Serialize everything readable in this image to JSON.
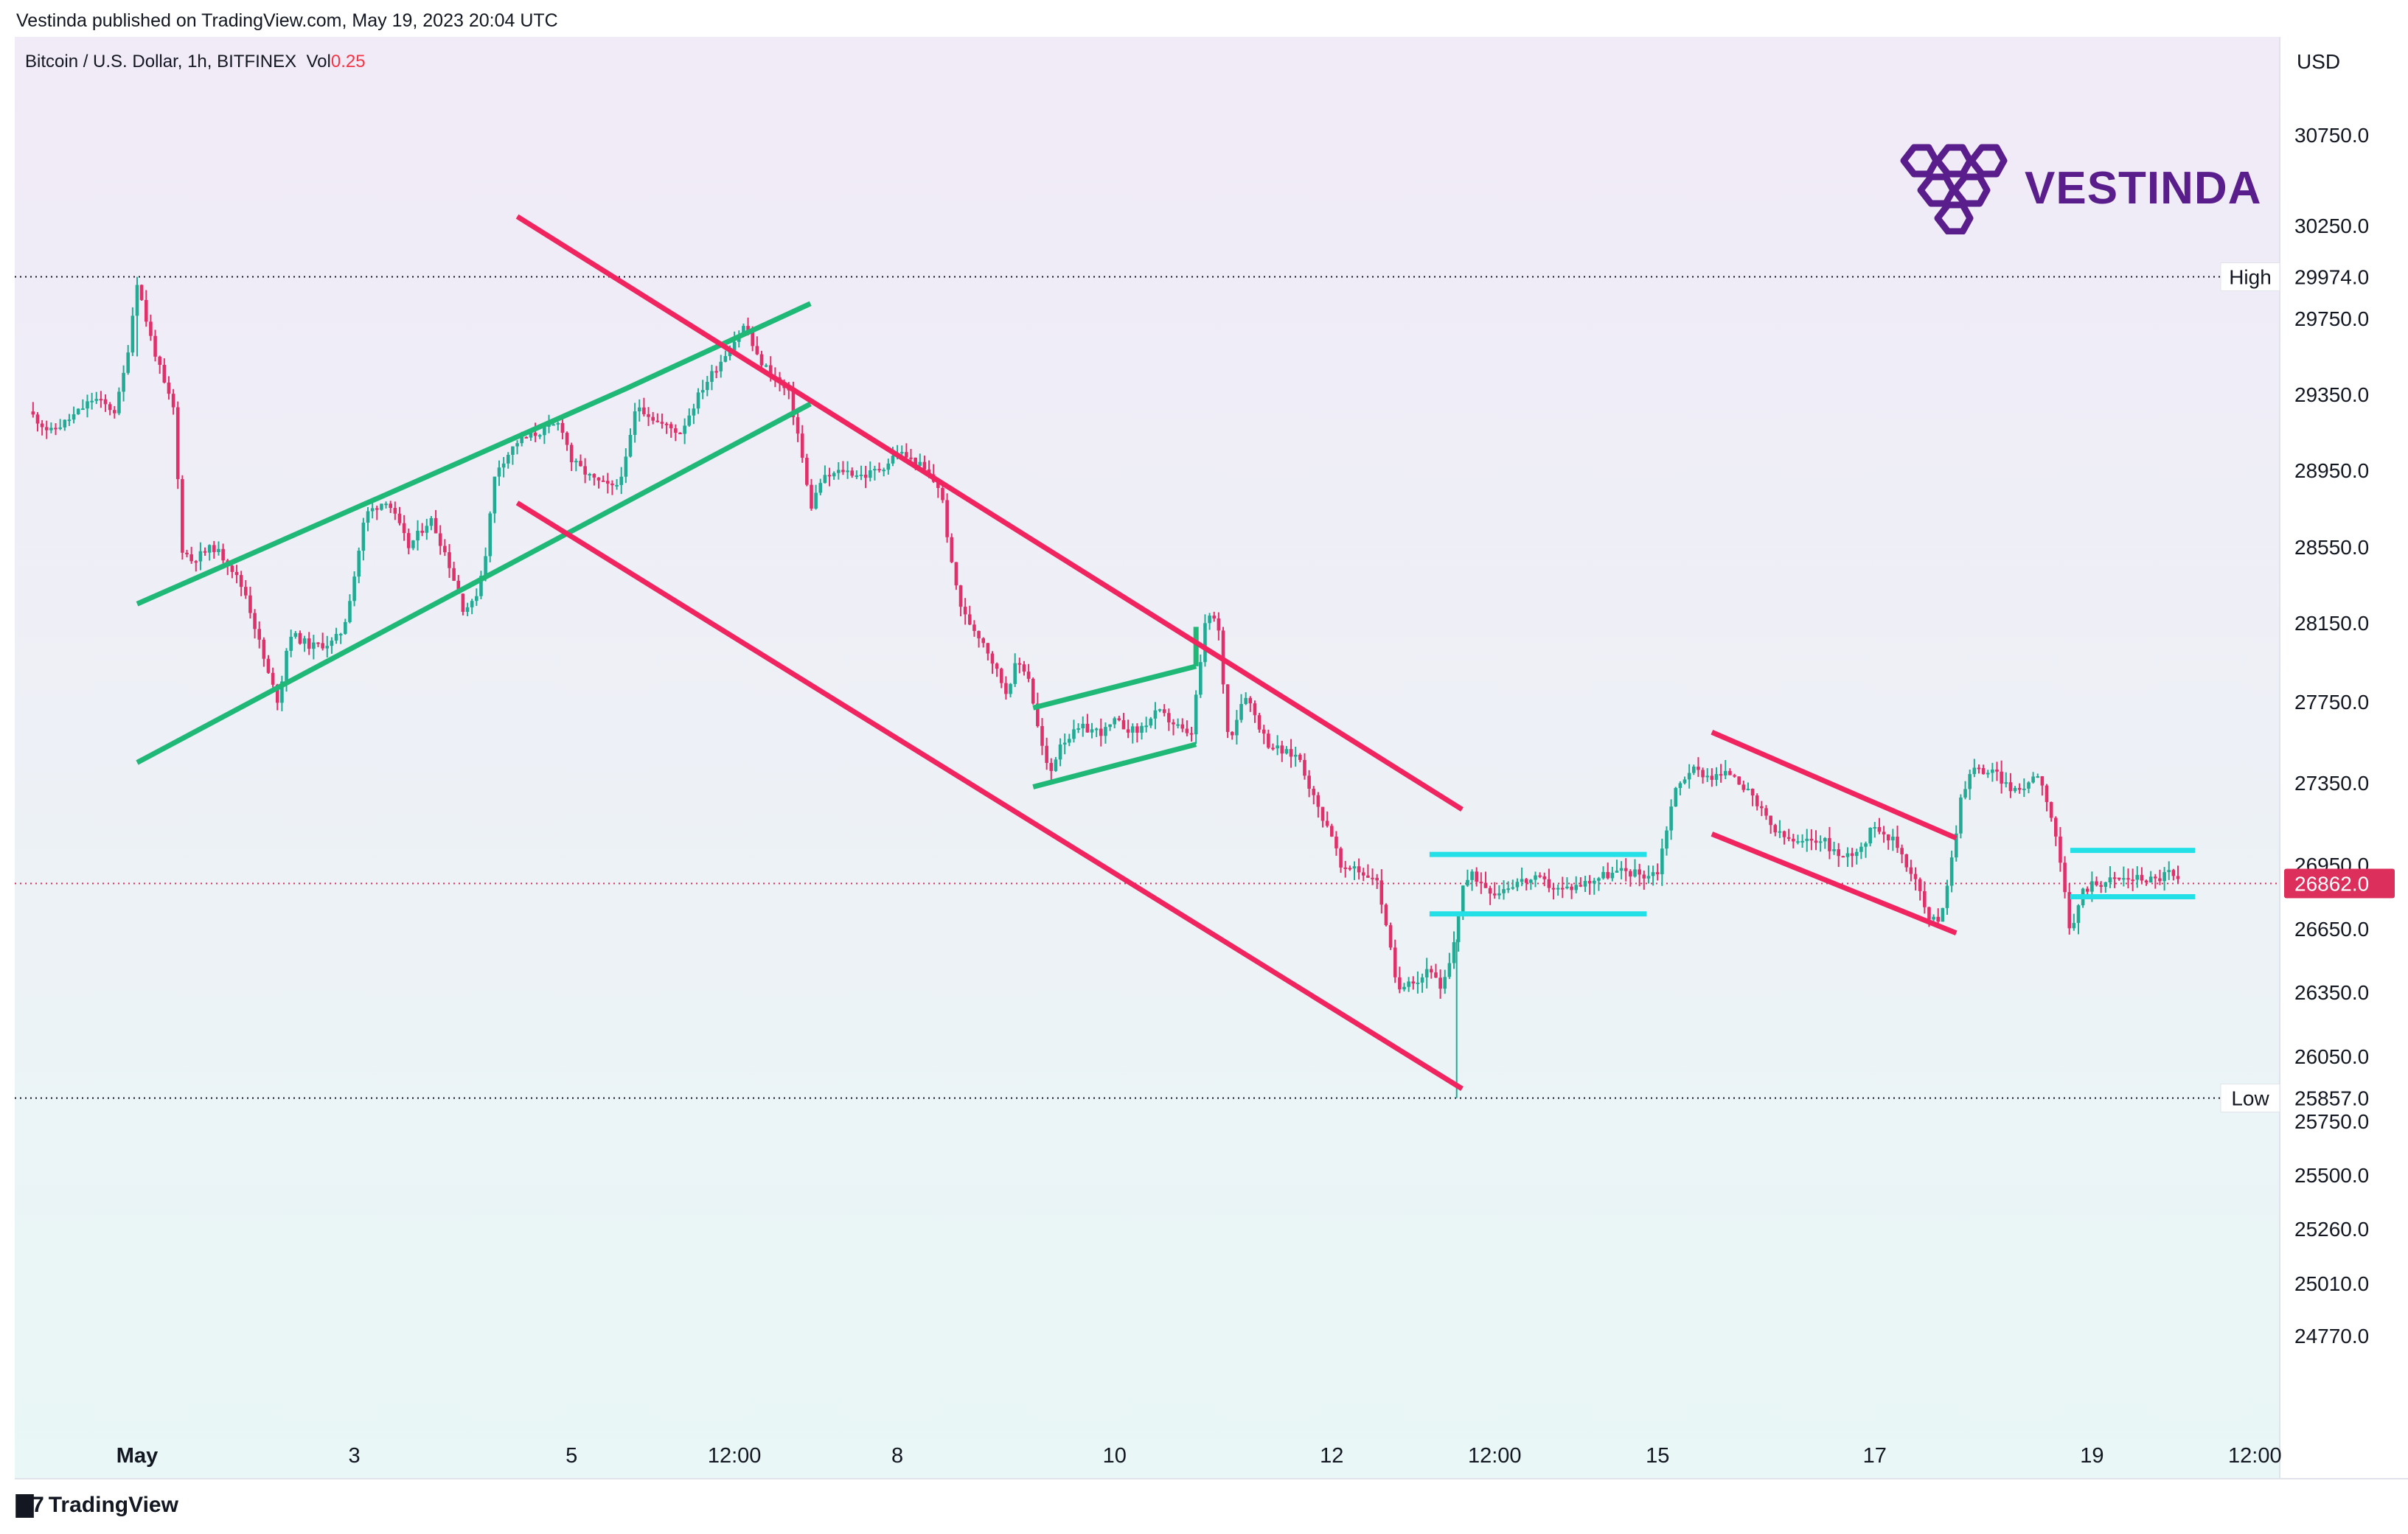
{
  "header": {
    "published_by": "Vestinda published on TradingView.com, May 19, 2023 20:04 UTC",
    "symbol": "Bitcoin / U.S. Dollar, 1h, BITFINEX",
    "vol_label": "Vol",
    "vol_value": "0.25"
  },
  "brand": {
    "name": "VESTINDA",
    "logo_icon": "hexagon-cluster-icon"
  },
  "footer": {
    "logo_icon": "tradingview-logo-icon",
    "label": "TradingView"
  },
  "colors": {
    "bull": "#22ab94",
    "bear": "#e0306a",
    "channel_green": "#1fb877",
    "channel_red": "#f0245f",
    "range_cyan": "#22e0e6",
    "price_tag": "#dc2f5c",
    "brand_purple": "#5a1e8c"
  },
  "chart_data": {
    "type": "candlestick",
    "currency_label": "USD",
    "y_ticks": [
      30750.0,
      30250.0,
      29750.0,
      29350.0,
      28950.0,
      28550.0,
      28150.0,
      27750.0,
      27350.0,
      26950.0,
      26650.0,
      26350.0,
      26050.0,
      25750.0,
      25500.0,
      25260.0,
      25010.0,
      24770.0
    ],
    "y_tick_labels": [
      "30750.0",
      "30250.0",
      "29750.0",
      "29350.0",
      "28950.0",
      "28550.0",
      "28150.0",
      "27750.0",
      "27350.0",
      "26950.0",
      "26650.0",
      "26350.0",
      "26050.0",
      "25750.0",
      "25500.0",
      "25260.0",
      "25010.0",
      "24770.0"
    ],
    "x_tick_labels": [
      "May",
      "3",
      "5",
      "12:00",
      "8",
      "10",
      "12",
      "12:00",
      "15",
      "17",
      "19",
      "12:00"
    ],
    "x_tick_pos": [
      0.0,
      2.0,
      4.0,
      5.5,
      7.0,
      9.0,
      11.0,
      12.5,
      14.0,
      16.0,
      18.0,
      19.5
    ],
    "x_unit": "days since May 1 00:00",
    "high": {
      "label": "High",
      "value": 29974.0,
      "value_label": "29974.0"
    },
    "low": {
      "label": "Low",
      "value": 25857.0,
      "value_label": "25857.0"
    },
    "last": {
      "value": 26862.0,
      "value_label": "26862.0"
    },
    "price_path": [
      [
        -1.0,
        29260
      ],
      [
        -0.8,
        29150
      ],
      [
        -0.6,
        29230
      ],
      [
        -0.4,
        29330
      ],
      [
        -0.2,
        29260
      ],
      [
        -0.1,
        29520
      ],
      [
        0.0,
        29950
      ],
      [
        0.1,
        29700
      ],
      [
        0.25,
        29400
      ],
      [
        0.35,
        29250
      ],
      [
        0.4,
        28550
      ],
      [
        0.5,
        28480
      ],
      [
        0.7,
        28550
      ],
      [
        0.85,
        28460
      ],
      [
        1.0,
        28300
      ],
      [
        1.2,
        27900
      ],
      [
        1.3,
        27750
      ],
      [
        1.4,
        28100
      ],
      [
        1.6,
        28030
      ],
      [
        1.8,
        28050
      ],
      [
        1.9,
        28120
      ],
      [
        2.0,
        28400
      ],
      [
        2.1,
        28720
      ],
      [
        2.3,
        28800
      ],
      [
        2.5,
        28550
      ],
      [
        2.7,
        28700
      ],
      [
        2.85,
        28500
      ],
      [
        3.0,
        28230
      ],
      [
        3.1,
        28250
      ],
      [
        3.2,
        28480
      ],
      [
        3.3,
        28950
      ],
      [
        3.5,
        29100
      ],
      [
        3.7,
        29150
      ],
      [
        3.9,
        29200
      ],
      [
        4.0,
        29000
      ],
      [
        4.2,
        28900
      ],
      [
        4.4,
        28850
      ],
      [
        4.5,
        29000
      ],
      [
        4.6,
        29300
      ],
      [
        4.8,
        29200
      ],
      [
        5.0,
        29150
      ],
      [
        5.2,
        29380
      ],
      [
        5.4,
        29550
      ],
      [
        5.6,
        29720
      ],
      [
        5.7,
        29550
      ],
      [
        5.9,
        29420
      ],
      [
        6.0,
        29350
      ],
      [
        6.1,
        29100
      ],
      [
        6.2,
        28750
      ],
      [
        6.3,
        28900
      ],
      [
        6.5,
        28950
      ],
      [
        6.7,
        28920
      ],
      [
        6.9,
        28980
      ],
      [
        7.0,
        29050
      ],
      [
        7.2,
        28980
      ],
      [
        7.4,
        28850
      ],
      [
        7.5,
        28450
      ],
      [
        7.6,
        28200
      ],
      [
        7.8,
        28050
      ],
      [
        8.0,
        27800
      ],
      [
        8.1,
        27950
      ],
      [
        8.2,
        27900
      ],
      [
        8.3,
        27600
      ],
      [
        8.4,
        27380
      ],
      [
        8.5,
        27550
      ],
      [
        8.7,
        27620
      ],
      [
        8.9,
        27600
      ],
      [
        9.0,
        27650
      ],
      [
        9.2,
        27600
      ],
      [
        9.4,
        27700
      ],
      [
        9.6,
        27620
      ],
      [
        9.7,
        27560
      ],
      [
        9.85,
        28200
      ],
      [
        9.95,
        28150
      ],
      [
        10.05,
        27550
      ],
      [
        10.2,
        27800
      ],
      [
        10.4,
        27550
      ],
      [
        10.55,
        27500
      ],
      [
        10.7,
        27480
      ],
      [
        10.85,
        27250
      ],
      [
        11.0,
        27100
      ],
      [
        11.1,
        26900
      ],
      [
        11.2,
        26950
      ],
      [
        11.3,
        26900
      ],
      [
        11.4,
        26900
      ],
      [
        11.5,
        26680
      ],
      [
        11.6,
        26350
      ],
      [
        11.7,
        26420
      ],
      [
        11.8,
        26400
      ],
      [
        11.9,
        26480
      ],
      [
        12.0,
        26350
      ],
      [
        12.1,
        26500
      ],
      [
        12.2,
        26850
      ],
      [
        12.3,
        26900
      ],
      [
        12.5,
        26820
      ],
      [
        12.7,
        26870
      ],
      [
        12.9,
        26880
      ],
      [
        13.1,
        26830
      ],
      [
        13.3,
        26860
      ],
      [
        13.5,
        26900
      ],
      [
        13.7,
        26920
      ],
      [
        13.9,
        26900
      ],
      [
        14.0,
        26920
      ],
      [
        14.15,
        27300
      ],
      [
        14.3,
        27420
      ],
      [
        14.5,
        27380
      ],
      [
        14.7,
        27400
      ],
      [
        14.9,
        27250
      ],
      [
        15.1,
        27100
      ],
      [
        15.3,
        27050
      ],
      [
        15.5,
        27080
      ],
      [
        15.7,
        26980
      ],
      [
        15.9,
        27050
      ],
      [
        16.0,
        27150
      ],
      [
        16.2,
        27050
      ],
      [
        16.4,
        26850
      ],
      [
        16.5,
        26680
      ],
      [
        16.6,
        26700
      ],
      [
        16.7,
        26950
      ],
      [
        16.8,
        27300
      ],
      [
        16.9,
        27420
      ],
      [
        17.1,
        27400
      ],
      [
        17.3,
        27300
      ],
      [
        17.4,
        27350
      ],
      [
        17.5,
        27400
      ],
      [
        17.6,
        27250
      ],
      [
        17.7,
        27000
      ],
      [
        17.8,
        26600
      ],
      [
        17.9,
        26820
      ],
      [
        18.0,
        26860
      ],
      [
        18.2,
        26880
      ],
      [
        18.4,
        26890
      ],
      [
        18.6,
        26880
      ],
      [
        18.7,
        26920
      ],
      [
        18.8,
        26862
      ]
    ],
    "drawings": [
      {
        "name": "ascending-channel-upper",
        "color": "green",
        "points": [
          [
            0.0,
            28250
          ],
          [
            3.0,
            29000
          ],
          [
            4.5,
            29380
          ],
          [
            6.2,
            29830
          ]
        ]
      },
      {
        "name": "ascending-channel-lower",
        "color": "green",
        "points": [
          [
            0.0,
            27450
          ],
          [
            6.2,
            29300
          ]
        ]
      },
      {
        "name": "bear-flag-upper",
        "color": "green",
        "points": [
          [
            8.25,
            27720
          ],
          [
            9.75,
            27930
          ]
        ]
      },
      {
        "name": "bear-flag-lower",
        "color": "green",
        "points": [
          [
            8.25,
            27330
          ],
          [
            9.75,
            27540
          ]
        ]
      },
      {
        "name": "flag-pole",
        "color": "green",
        "points": [
          [
            9.75,
            27930
          ],
          [
            9.75,
            28130
          ]
        ]
      },
      {
        "name": "descending-channel-upper",
        "color": "red",
        "points": [
          [
            3.5,
            30300
          ],
          [
            12.2,
            27220
          ]
        ]
      },
      {
        "name": "descending-channel-lower",
        "color": "red",
        "points": [
          [
            3.5,
            28780
          ],
          [
            12.2,
            25900
          ]
        ]
      },
      {
        "name": "falling-wedge-upper",
        "color": "red",
        "points": [
          [
            14.5,
            27600
          ],
          [
            16.75,
            27080
          ]
        ]
      },
      {
        "name": "falling-wedge-lower",
        "color": "red",
        "points": [
          [
            14.5,
            27100
          ],
          [
            16.75,
            26630
          ]
        ]
      },
      {
        "name": "range-1-top",
        "color": "cyan",
        "points": [
          [
            11.9,
            27000
          ],
          [
            13.9,
            27000
          ]
        ]
      },
      {
        "name": "range-1-bottom",
        "color": "cyan",
        "points": [
          [
            11.9,
            26720
          ],
          [
            13.9,
            26720
          ]
        ]
      },
      {
        "name": "range-2-top",
        "color": "cyan",
        "points": [
          [
            17.8,
            27020
          ],
          [
            18.95,
            27020
          ]
        ]
      },
      {
        "name": "range-2-bottom",
        "color": "cyan",
        "points": [
          [
            17.8,
            26800
          ],
          [
            18.95,
            26800
          ]
        ]
      }
    ]
  }
}
